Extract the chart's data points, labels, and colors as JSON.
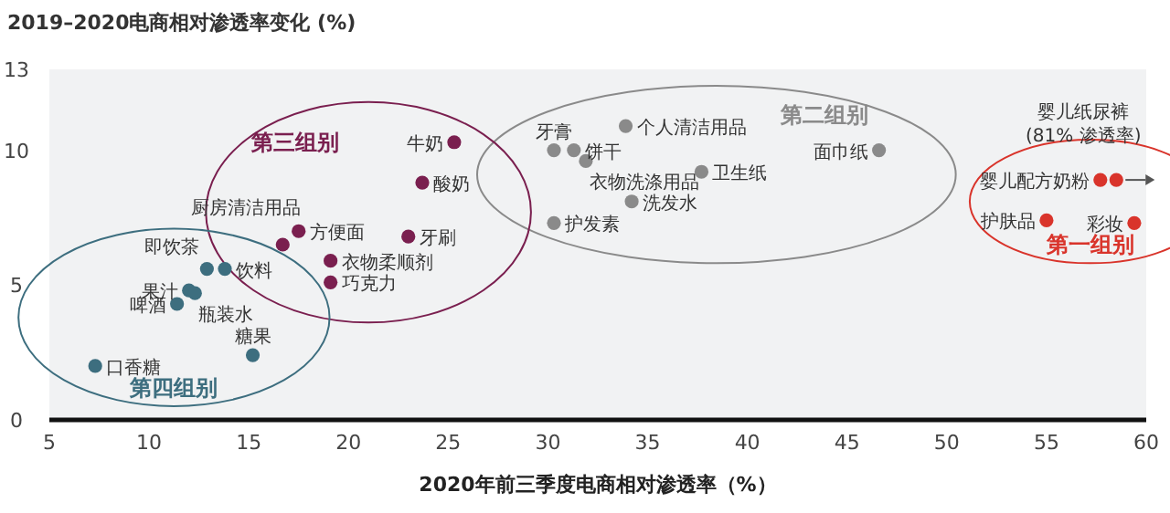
{
  "chart_data": {
    "type": "scatter",
    "title": "2019–2020电商相对渗透率变化 (%)",
    "xlabel": "2020年前三季度电商相对渗透率（%）",
    "xlim": [
      5,
      60
    ],
    "xticks": [
      5,
      10,
      15,
      20,
      25,
      30,
      35,
      40,
      45,
      50,
      55,
      60
    ],
    "ylim": [
      0,
      13
    ],
    "yticks": [
      0,
      5,
      10,
      13
    ],
    "grid": false,
    "marker": "circle",
    "annotations": [
      {
        "text": "(81% 渗透率)",
        "x": 58.5,
        "y": 8.9
      }
    ],
    "series": [
      {
        "name": "第一组别",
        "color": "#d9342b",
        "x": [
          57.7,
          58.5,
          55.0,
          59.4
        ],
        "values": [
          8.9,
          8.9,
          7.4,
          7.3
        ],
        "value_labels": [
          "婴儿配方奶粉",
          "婴儿纸尿裤",
          "护肤品",
          "彩妆"
        ]
      },
      {
        "name": "第二组别",
        "color": "#8a8a8a",
        "x": [
          30.3,
          31.3,
          31.9,
          33.9,
          37.7,
          34.2,
          30.3,
          46.6
        ],
        "values": [
          10.0,
          10.0,
          9.6,
          10.9,
          9.2,
          8.1,
          7.3,
          10.0
        ],
        "value_labels": [
          "牙膏",
          "饼干",
          "衣物洗涤用品",
          "个人清洁用品",
          "卫生纸",
          "洗发水",
          "护发素",
          "面巾纸"
        ]
      },
      {
        "name": "第三组别",
        "color": "#7a1f4f",
        "x": [
          25.3,
          23.7,
          17.5,
          16.7,
          23.0,
          19.1,
          19.1
        ],
        "values": [
          10.3,
          8.8,
          7.0,
          6.5,
          6.8,
          5.9,
          5.1
        ],
        "value_labels": [
          "牛奶",
          "酸奶",
          "方便面",
          "厨房清洁用品",
          "牙刷",
          "衣物柔顺剂",
          "巧克力"
        ]
      },
      {
        "name": "第四组别",
        "color": "#3d6e7f",
        "x": [
          7.3,
          15.2,
          11.4,
          12.0,
          12.3,
          12.9,
          13.8
        ],
        "values": [
          2.0,
          2.4,
          4.3,
          4.8,
          4.7,
          5.6,
          5.6
        ],
        "value_labels": [
          "口香糖",
          "糖果",
          "啤酒",
          "果汁",
          "瓶装水",
          "即饮茶",
          "饮料"
        ]
      }
    ]
  }
}
